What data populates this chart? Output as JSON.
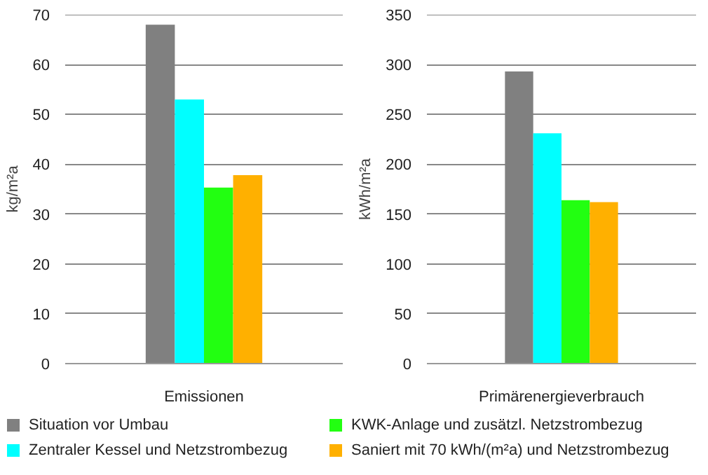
{
  "chart_data": [
    {
      "type": "bar",
      "categories": [
        "Emissionen"
      ],
      "ylabel": "kg/m²a",
      "ylim": [
        0,
        70
      ],
      "yticks": [
        0,
        10,
        20,
        30,
        40,
        50,
        60,
        70
      ],
      "grid": "y",
      "legend": "bottom",
      "series": [
        {
          "name": "Situation vor Umbau",
          "color": "#808080",
          "values": [
            68
          ]
        },
        {
          "name": "Zentraler Kessel und Netzstrombezug",
          "color": "#00ffff",
          "values": [
            53
          ]
        },
        {
          "name": "KWK-Anlage und zusätzl. Netzstrombezug",
          "color": "#22ff11",
          "values": [
            35.3
          ]
        },
        {
          "name": "Saniert mit 70 kWh/(m²a) und Netzstrombezug",
          "color": "#ffb000",
          "values": [
            37.8
          ]
        }
      ]
    },
    {
      "type": "bar",
      "categories": [
        "Primärenergieverbrauch"
      ],
      "ylabel": "kWh/m²a",
      "ylim": [
        0,
        350
      ],
      "yticks": [
        0,
        50,
        100,
        150,
        200,
        250,
        300,
        350
      ],
      "grid": "y",
      "series": [
        {
          "color": "#808080",
          "values": [
            293
          ]
        },
        {
          "color": "#00ffff",
          "values": [
            231
          ]
        },
        {
          "color": "#22ff11",
          "values": [
            164
          ]
        },
        {
          "color": "#ffb000",
          "values": [
            162
          ]
        }
      ]
    }
  ]
}
